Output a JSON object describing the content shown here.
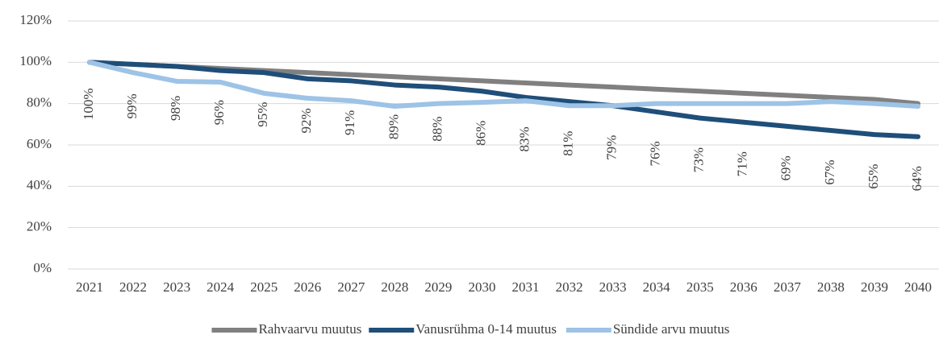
{
  "chart_data": {
    "type": "line",
    "categories": [
      "2021",
      "2022",
      "2023",
      "2024",
      "2025",
      "2026",
      "2027",
      "2028",
      "2029",
      "2030",
      "2031",
      "2032",
      "2033",
      "2034",
      "2035",
      "2036",
      "2037",
      "2038",
      "2039",
      "2040"
    ],
    "series": [
      {
        "name": "Rahvaarvu muutus",
        "color": "#808080",
        "values": [
          100,
          99,
          98,
          97,
          96,
          95,
          94,
          93,
          92,
          91,
          90,
          89,
          88,
          87,
          86,
          85,
          84,
          83,
          82,
          80
        ]
      },
      {
        "name": "Vanusrühma 0-14 muutus",
        "color": "#1f4e79",
        "values": [
          100,
          99,
          98,
          96,
          95,
          92,
          91,
          89,
          88,
          86,
          83,
          81,
          79,
          76,
          73,
          71,
          69,
          67,
          65,
          64
        ],
        "value_labels": [
          "100%",
          "99%",
          "98%",
          "96%",
          "95%",
          "92%",
          "91%",
          "89%",
          "88%",
          "86%",
          "83%",
          "81%",
          "79%",
          "76%",
          "73%",
          "71%",
          "69%",
          "67%",
          "65%",
          "64%"
        ]
      },
      {
        "name": "Sündide arvu muutus",
        "color": "#9dc3e6",
        "values": [
          100,
          95,
          90.8,
          90.4,
          85,
          82.6,
          81.4,
          78.7,
          80,
          80.6,
          81.4,
          79,
          79,
          80,
          80,
          80,
          80,
          81,
          80,
          78.7
        ]
      }
    ],
    "ylim": [
      0,
      120
    ],
    "yticks": [
      {
        "value": 0,
        "label": "0%"
      },
      {
        "value": 20,
        "label": "20%"
      },
      {
        "value": 40,
        "label": "40%"
      },
      {
        "value": 60,
        "label": "60%"
      },
      {
        "value": 80,
        "label": "80%"
      },
      {
        "value": 100,
        "label": "100%"
      },
      {
        "value": 120,
        "label": "120%"
      }
    ],
    "grid": true,
    "legend": "bottom"
  }
}
